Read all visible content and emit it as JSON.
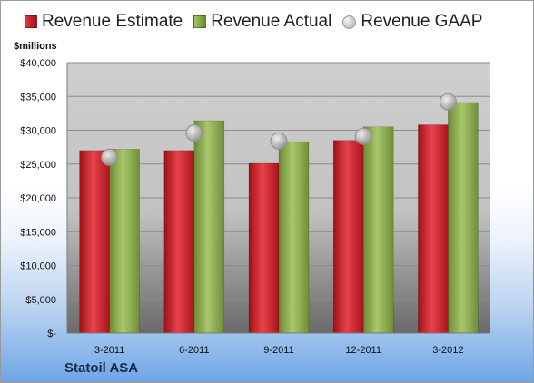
{
  "unit_label": "$millions",
  "company": "Statoil ASA",
  "legend": [
    {
      "label": "Revenue Estimate",
      "color": "#c8202a",
      "icon": "square"
    },
    {
      "label": "Revenue Actual",
      "color": "#8aaa4e",
      "icon": "square"
    },
    {
      "label": "Revenue GAAP",
      "color": "#bbbbbb",
      "icon": "circle"
    }
  ],
  "chart_data": {
    "type": "bar",
    "title": "",
    "xlabel": "",
    "ylabel": "$millions",
    "categories": [
      "3-2011",
      "6-2011",
      "9-2011",
      "12-2011",
      "3-2012"
    ],
    "series": [
      {
        "name": "Revenue Estimate",
        "type": "bar",
        "color": "#c8202a",
        "values": [
          27000,
          27000,
          25100,
          28500,
          30800
        ]
      },
      {
        "name": "Revenue Actual",
        "type": "bar",
        "color": "#8aaa4e",
        "values": [
          27200,
          31400,
          28300,
          30500,
          34100
        ]
      },
      {
        "name": "Revenue GAAP",
        "type": "scatter",
        "color": "#bbbbbb",
        "values": [
          26000,
          29600,
          28400,
          29100,
          34200
        ]
      }
    ],
    "ylim": [
      0,
      40000
    ],
    "yticks": [
      "$-",
      "$5,000",
      "$10,000",
      "$15,000",
      "$20,000",
      "$25,000",
      "$30,000",
      "$35,000",
      "$40,000"
    ],
    "grid": true,
    "legend_position": "top"
  }
}
